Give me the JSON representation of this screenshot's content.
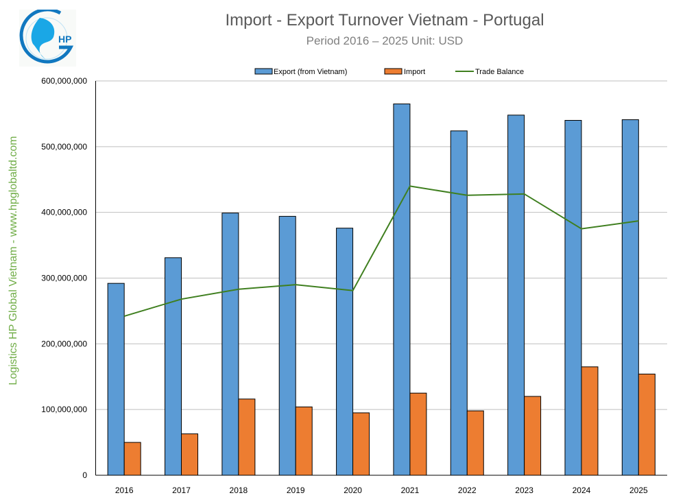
{
  "logo_text": "HP",
  "side_text": "Logistics HP Global Vietnam - www.hpglobaltd.com",
  "chart_data": {
    "type": "bar",
    "title": "Import - Export Turnover Vietnam - Portugal",
    "subtitle": "Period 2016 – 2025  Unit: USD",
    "categories": [
      "2016",
      "2017",
      "2018",
      "2019",
      "2020",
      "2021",
      "2022",
      "2023",
      "2024",
      "2025"
    ],
    "ylim": [
      0,
      600000000
    ],
    "yticks": [
      "0",
      "100,000,000",
      "200,000,000",
      "300,000,000",
      "400,000,000",
      "500,000,000",
      "600,000,000"
    ],
    "ytick_values": [
      0,
      100000000,
      200000000,
      300000000,
      400000000,
      500000000,
      600000000
    ],
    "grid": true,
    "legend_position": "top",
    "series": [
      {
        "name": "Export (from Vietnam)",
        "type": "bar",
        "color": "#5b9bd5",
        "values": [
          292000000,
          331000000,
          399000000,
          394000000,
          376000000,
          565000000,
          524000000,
          548000000,
          540000000,
          541000000
        ]
      },
      {
        "name": "Import",
        "type": "bar",
        "color": "#ed7d31",
        "values": [
          50000000,
          63000000,
          116000000,
          104000000,
          95000000,
          125000000,
          98000000,
          120000000,
          165000000,
          154000000
        ]
      },
      {
        "name": "Trade Balance",
        "type": "line",
        "color": "#3f7f1f",
        "values": [
          242000000,
          268000000,
          283000000,
          290000000,
          281000000,
          440000000,
          426000000,
          428000000,
          375000000,
          387000000
        ]
      }
    ]
  }
}
